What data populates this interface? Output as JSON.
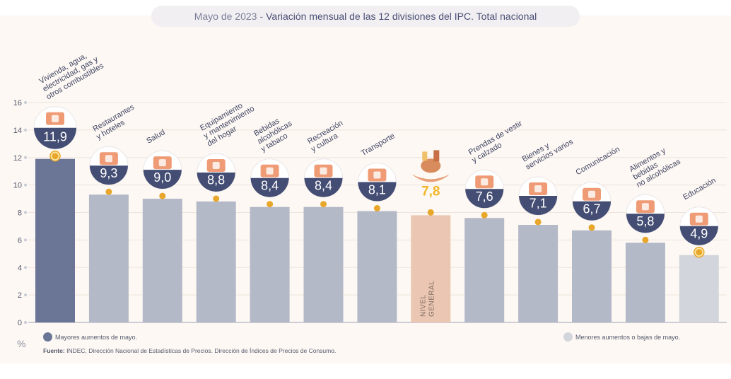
{
  "title": {
    "date": "Mayo de 2023",
    "separator": "-",
    "text": "Variación mensual de las 12 divisiones del IPC. Total nacional"
  },
  "unit_label": "%",
  "legend": {
    "high": "Mayores aumentos de mayo.",
    "low": "Menores aumentos o bajas de mayo."
  },
  "source": {
    "label": "Fuente:",
    "text": "INDEC, Dirección Nacional de Estadísticas de Precios. Dirección de Índices de Precios de Consumo."
  },
  "colors": {
    "highlight_high": "#6b7596",
    "regular": "#b4b9c8",
    "highlight_low": "#d3d5dc",
    "general": "#ebc7b3",
    "badge": "#444d73",
    "dot": "#e8a72b",
    "general_value": "#f2b526",
    "axis_text": "#555a6e"
  },
  "chart_data": {
    "type": "bar",
    "categories": [
      "Vivienda, agua, electricidad, gas y otros combustibles",
      "Restaurantes y hoteles",
      "Salud",
      "Equipamiento y mantenimiento del hogar",
      "Bebidas alcohólicas y tabaco",
      "Recreación y cultura",
      "Transporte",
      "NIVEL GENERAL",
      "Prendas de vestir y calzado",
      "Bienes y servicios varios",
      "Comunicación",
      "Alimentos y bebidas no alcohólicas",
      "Educación"
    ],
    "category_label_lines": [
      [
        "Vivienda, agua,",
        "electricidad, gas y",
        "otros combustibles"
      ],
      [
        "Restaurantes",
        "y hoteles"
      ],
      [
        "Salud"
      ],
      [
        "Equipamiento",
        "y mantenimiento",
        "del hogar"
      ],
      [
        "Bebidas",
        "alcohólicas",
        "y tabaco"
      ],
      [
        "Recreación",
        "y cultura"
      ],
      [
        "Transporte"
      ],
      [
        "NIVEL",
        "GENERAL"
      ],
      [
        "Prendas de vestir",
        "y calzado"
      ],
      [
        "Bienes y",
        "servicios varios"
      ],
      [
        "Comunicación"
      ],
      [
        "Alimentos y",
        "bebidas",
        "no alcohólicas"
      ],
      [
        "Educación"
      ]
    ],
    "values": [
      11.9,
      9.3,
      9.0,
      8.8,
      8.4,
      8.4,
      8.1,
      7.8,
      7.6,
      7.1,
      6.7,
      5.8,
      4.9
    ],
    "value_labels": [
      "11,9",
      "9,3",
      "9,0",
      "8,8",
      "8,4",
      "8,4",
      "8,1",
      "7,8",
      "7,6",
      "7,1",
      "6,7",
      "5,8",
      "4,9"
    ],
    "bar_role": [
      "high",
      "regular",
      "regular",
      "regular",
      "regular",
      "regular",
      "regular",
      "general",
      "regular",
      "regular",
      "regular",
      "regular",
      "low"
    ],
    "icons": [
      "lightbulb-icon",
      "restaurant-icon",
      "medical-cross-icon",
      "washing-machine-icon",
      "wine-bottle-icon",
      "beach-umbrella-icon",
      "bus-icon",
      "shopping-basket-icon",
      "tshirt-icon",
      "comb-scissors-icon",
      "smartphone-icon",
      "groceries-icon",
      "notebook-icon"
    ],
    "yticks": [
      0,
      2,
      4,
      6,
      8,
      10,
      12,
      14,
      16
    ],
    "ylim": [
      0,
      16
    ],
    "xlabel": "",
    "ylabel": "%",
    "grid": true,
    "legend_position": "bottom"
  }
}
